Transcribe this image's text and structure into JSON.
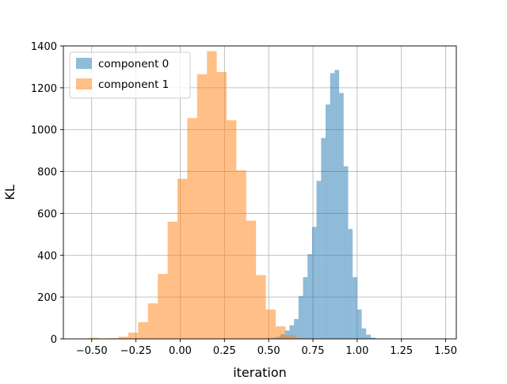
{
  "chart_data": {
    "type": "histogram",
    "xlabel": "iteration",
    "ylabel": "KL",
    "xlim": [
      -0.66,
      1.56
    ],
    "ylim": [
      0,
      1400
    ],
    "xticks": [
      -0.5,
      -0.25,
      0.0,
      0.25,
      0.5,
      0.75,
      1.0,
      1.25,
      1.5
    ],
    "xtick_labels": [
      "−0.50",
      "−0.25",
      "0.00",
      "0.25",
      "0.50",
      "0.75",
      "1.00",
      "1.25",
      "1.50"
    ],
    "yticks": [
      0,
      200,
      400,
      600,
      800,
      1000,
      1200,
      1400
    ],
    "ytick_labels": [
      "0",
      "200",
      "400",
      "600",
      "800",
      "1000",
      "1200",
      "1400"
    ],
    "grid": true,
    "legend_position": "top-left",
    "series": [
      {
        "name": "component 0",
        "color": "#1f77b4",
        "alpha": 0.5,
        "bin_start": 0.49,
        "bin_width": 0.0255,
        "counts": [
          3,
          5,
          10,
          22,
          40,
          65,
          95,
          205,
          295,
          405,
          535,
          755,
          960,
          1120,
          1270,
          1285,
          1175,
          825,
          525,
          295,
          140,
          50,
          20,
          6,
          2
        ]
      },
      {
        "name": "component 1",
        "color": "#ff7f0e",
        "alpha": 0.5,
        "bin_start": -0.515,
        "bin_width": 0.0555,
        "counts": [
          5,
          2,
          3,
          10,
          30,
          80,
          170,
          310,
          560,
          765,
          1055,
          1265,
          1375,
          1275,
          1045,
          805,
          565,
          305,
          140,
          60,
          18,
          4,
          1
        ]
      }
    ]
  }
}
